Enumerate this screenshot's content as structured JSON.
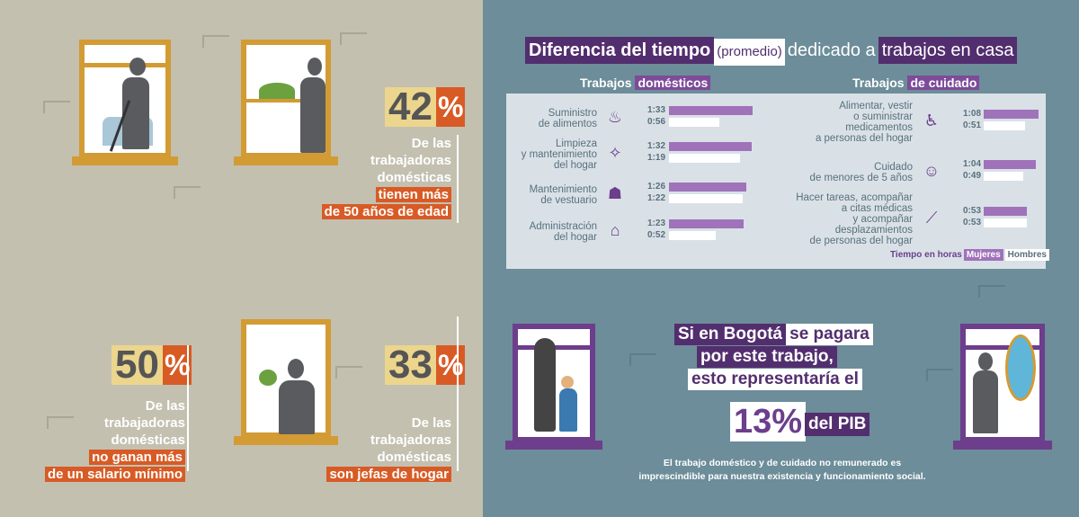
{
  "left": {
    "stat1": {
      "value": "42",
      "sign": "%",
      "line1": "De las",
      "line2": "trabajadoras",
      "line3": "domésticas",
      "hl1": "tienen más",
      "hl2": "de 50 años de edad"
    },
    "stat2": {
      "value": "50",
      "sign": "%",
      "line1": "De las",
      "line2": "trabajadoras",
      "line3": "domésticas",
      "hl1": "no ganan más",
      "hl2": "de un salario mínimo"
    },
    "stat3": {
      "value": "33",
      "sign": "%",
      "line1": "De las",
      "line2": "trabajadoras",
      "line3": "domésticas",
      "hl1": "son jefas de hogar"
    }
  },
  "title": {
    "part1": "Diferencia del tiempo",
    "part2": "(promedio)",
    "part3": "dedicado a",
    "part4": "trabajos en casa"
  },
  "chart_data": [
    {
      "type": "bar",
      "title_plain": "Trabajos",
      "title_hl": "domésticos",
      "categories": [
        "Suministro de alimentos",
        "Limpieza y mantenimiento del hogar",
        "Mantenimiento de vestuario",
        "Administración del hogar"
      ],
      "category_lines": [
        [
          "Suministro",
          "de alimentos"
        ],
        [
          "Limpieza",
          "y mantenimiento",
          "del hogar"
        ],
        [
          "Mantenimiento",
          "de vestuario"
        ],
        [
          "Administración",
          "del hogar"
        ]
      ],
      "icons": [
        "pot-icon",
        "cleaning-icon",
        "iron-icon",
        "house-icon"
      ],
      "series": [
        {
          "name": "Mujeres",
          "labels": [
            "1:33",
            "1:32",
            "1:26",
            "1:23"
          ],
          "values": [
            93,
            92,
            86,
            83
          ]
        },
        {
          "name": "Hombres",
          "labels": [
            "0:56",
            "1:19",
            "1:22",
            "0:52"
          ],
          "values": [
            56,
            79,
            82,
            52
          ]
        }
      ],
      "unit": "minutes"
    },
    {
      "type": "bar",
      "title_plain": "Trabajos",
      "title_hl": "de cuidado",
      "categories": [
        "Alimentar, vestir o suministrar medicamentos a personas del hogar",
        "Cuidado de menores de 5 años",
        "Hacer tareas, acompañar a citas médicas y acompañar desplazamientos de personas del hogar"
      ],
      "category_lines": [
        [
          "Alimentar, vestir",
          "o suministrar",
          "medicamentos",
          "a personas del hogar"
        ],
        [
          "Cuidado",
          "de menores de 5 años"
        ],
        [
          "Hacer tareas, acompañar",
          "a citas médicas",
          "y acompañar",
          "desplazamientos",
          "de personas del hogar"
        ]
      ],
      "icons": [
        "wheelchair-icon",
        "baby-icon",
        "crutch-icon"
      ],
      "series": [
        {
          "name": "Mujeres",
          "labels": [
            "1:08",
            "1:04",
            "0:53"
          ],
          "values": [
            68,
            64,
            53
          ]
        },
        {
          "name": "Hombres",
          "labels": [
            "0:51",
            "0:49",
            "0:53"
          ],
          "values": [
            51,
            49,
            53
          ]
        }
      ],
      "unit": "minutes"
    }
  ],
  "legend": {
    "label": "Tiempo en horas",
    "mujeres": "Mujeres",
    "hombres": "Hombres"
  },
  "bogota": {
    "l1a": "Si en Bogotá",
    "l1b": "se pagara",
    "l2": "por este trabajo,",
    "l3": "esto representaría el",
    "pct": "13%",
    "pib": "del PIB",
    "foot1": "El trabajo doméstico y de cuidado no remunerado es",
    "foot2": "imprescindible para nuestra existencia y funcionamiento social."
  },
  "colors": {
    "left_bg": "#c3c0b0",
    "right_bg": "#6c8d99",
    "orange": "#d85b25",
    "yellow": "#ecd58c",
    "purple_dark": "#522e6e",
    "purple_bar": "#a072ba",
    "window_gold": "#d39b33"
  }
}
